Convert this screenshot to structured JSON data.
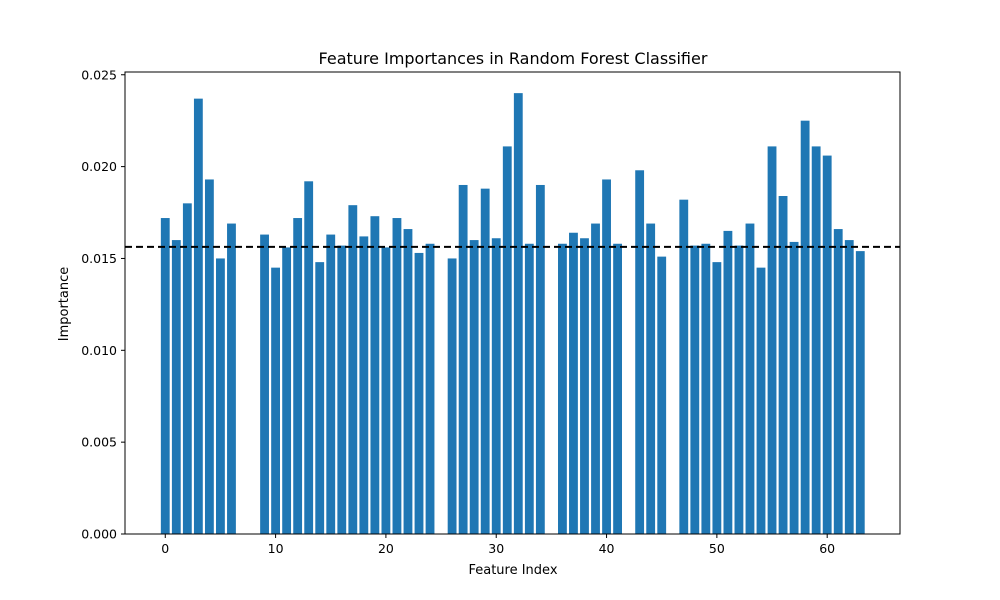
{
  "chart_data": {
    "type": "bar",
    "title": "Feature Importances in Random Forest Classifier",
    "xlabel": "Feature Index",
    "ylabel": "Importance",
    "x": [
      0,
      1,
      2,
      3,
      4,
      5,
      6,
      7,
      8,
      9,
      10,
      11,
      12,
      13,
      14,
      15,
      16,
      17,
      18,
      19,
      20,
      21,
      22,
      23,
      24,
      25,
      26,
      27,
      28,
      29,
      30,
      31,
      32,
      33,
      34,
      35,
      36,
      37,
      38,
      39,
      40,
      41,
      42,
      43,
      44,
      45,
      46,
      47,
      48,
      49,
      50,
      51,
      52,
      53,
      54,
      55,
      56,
      57,
      58,
      59,
      60,
      61,
      62,
      63
    ],
    "values": [
      0.0172,
      0.016,
      0.018,
      0.0237,
      0.0193,
      0.015,
      0.0169,
      0,
      0,
      0.0163,
      0.0145,
      0.0156,
      0.0172,
      0.0192,
      0.0148,
      0.0163,
      0.0157,
      0.0179,
      0.0162,
      0.0173,
      0.0156,
      0.0172,
      0.0166,
      0.0153,
      0.0158,
      0,
      0.015,
      0.019,
      0.016,
      0.0188,
      0.0161,
      0.0211,
      0.024,
      0.0158,
      0.019,
      0,
      0.0158,
      0.0164,
      0.0161,
      0.0169,
      0.0193,
      0.0158,
      0,
      0.0198,
      0.0169,
      0.0151,
      0,
      0.0182,
      0.0157,
      0.0158,
      0.0148,
      0.0165,
      0.0157,
      0.0169,
      0.0145,
      0.0211,
      0.0184,
      0.0159,
      0.0225,
      0.0211,
      0.0206,
      0.0166,
      0.016,
      0.0154
    ],
    "mean_line": 0.01563,
    "xlim": [
      -3.65,
      66.6
    ],
    "ylim": [
      0,
      0.02515
    ],
    "xticks": [
      0,
      10,
      20,
      30,
      40,
      50,
      60
    ],
    "xtick_labels": [
      "0",
      "10",
      "20",
      "30",
      "40",
      "50",
      "60"
    ],
    "yticks": [
      0,
      0.005,
      0.01,
      0.015,
      0.02,
      0.025
    ],
    "ytick_labels": [
      "0.000",
      "0.005",
      "0.010",
      "0.015",
      "0.020",
      "0.025"
    ],
    "bar_color": "#1f77b4",
    "line_color": "#000000",
    "line_style": "dashed",
    "grid": false
  }
}
